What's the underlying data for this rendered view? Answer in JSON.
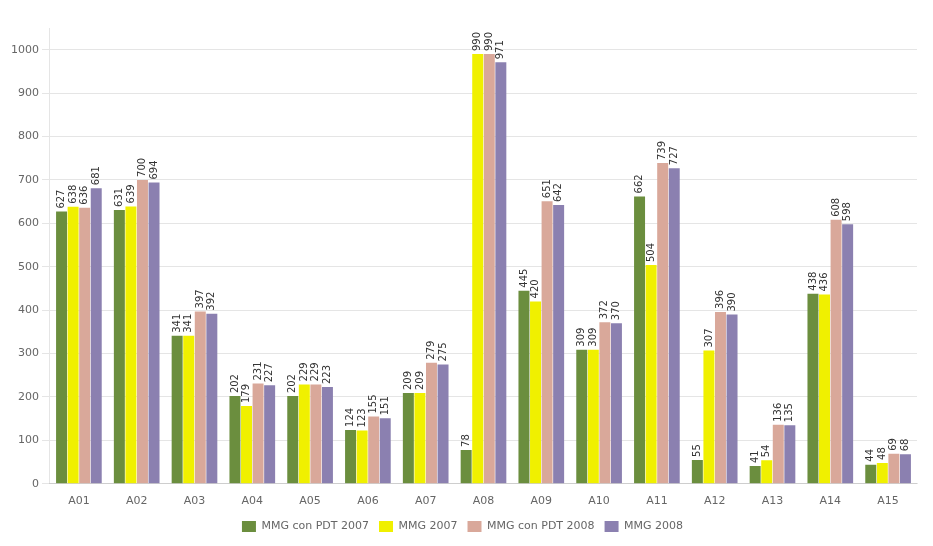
{
  "chart_data": {
    "type": "bar",
    "categories": [
      "A01",
      "A02",
      "A03",
      "A04",
      "A05",
      "A06",
      "A07",
      "A08",
      "A09",
      "A10",
      "A11",
      "A12",
      "A13",
      "A14",
      "A15"
    ],
    "series": [
      {
        "name": "MMG con PDT 2007",
        "color": "#6b8e3e",
        "values": [
          627,
          631,
          341,
          202,
          202,
          124,
          209,
          78,
          445,
          309,
          662,
          55,
          41,
          438,
          44
        ]
      },
      {
        "name": "MMG 2007",
        "color": "#f0f000",
        "values": [
          638,
          639,
          341,
          179,
          229,
          123,
          209,
          990,
          420,
          309,
          504,
          307,
          54,
          436,
          48
        ]
      },
      {
        "name": "MMG con PDT 2008",
        "color": "#d9a89a",
        "values": [
          636,
          700,
          397,
          231,
          229,
          155,
          279,
          990,
          651,
          372,
          739,
          396,
          136,
          608,
          69
        ]
      },
      {
        "name": "MMG 2008",
        "color": "#8b80b0",
        "values": [
          681,
          694,
          392,
          227,
          223,
          151,
          275,
          971,
          642,
          370,
          727,
          390,
          135,
          598,
          68
        ]
      }
    ],
    "ylim": [
      0,
      1050
    ],
    "yticks": [
      0,
      100,
      200,
      300,
      400,
      500,
      600,
      700,
      800,
      900,
      1000
    ],
    "grid": true,
    "legend": "bottom",
    "data_labels": true
  }
}
